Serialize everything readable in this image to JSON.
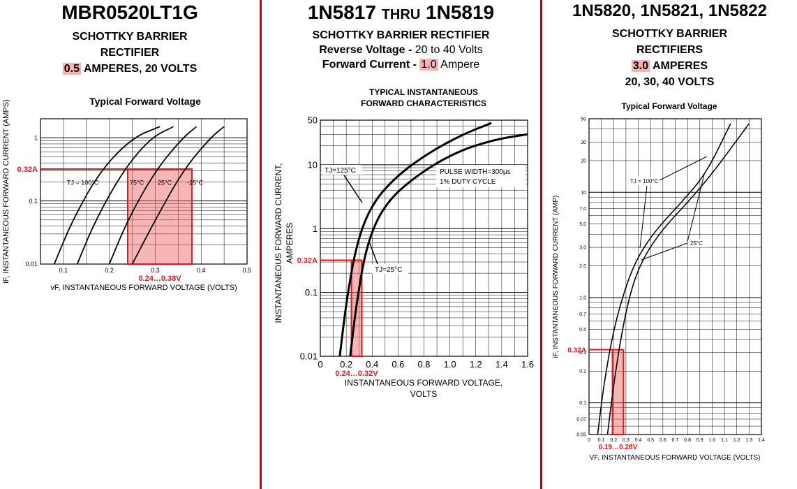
{
  "colors": {
    "divider": "#8b1a1a",
    "highlight": "#f6b3b3",
    "red": "#e0161b",
    "fill": "rgba(240,90,90,0.45)"
  },
  "panels": [
    {
      "title": "MBR0520LT1G",
      "lines": [
        "SCHOTTKY BARRIER",
        "RECTIFIER"
      ],
      "amps_hl": "0.5",
      "amps_rest": " AMPERES, 20 VOLTS"
    },
    {
      "title_a": "1N5817",
      "title_b": "THRU",
      "title_c": "1N5819",
      "line1": "SCHOTTKY BARRIER RECTIFIER",
      "rv_label": "Reverse Voltage - ",
      "rv_value": "20 to 40 Volts",
      "fc_label": "Forward Current - ",
      "fc_hl": "1.0",
      "fc_rest": " Ampere"
    },
    {
      "title": "1N5820, 1N5821, 1N5822",
      "lines": [
        "SCHOTTKY BARRIER",
        "RECTIFIERS"
      ],
      "amps_hl": "3.0",
      "amps_rest": " AMPERES",
      "volts": "20, 30, 40 VOLTS"
    }
  ],
  "chart_data": [
    {
      "type": "line",
      "title": "Typical Forward Voltage",
      "xlabel": "vF, INSTANTANEOUS FORWARD VOLTAGE (VOLTS)",
      "ylabel": "iF, INSTANTANEOUS FORWARD CURRENT (AMPS)",
      "xlim": [
        0.05,
        0.5
      ],
      "ylim": [
        0.01,
        2
      ],
      "yscale": "log",
      "xticks": [
        "0.1",
        "0.2",
        "0.3",
        "0.4",
        "0.5"
      ],
      "yticks": [
        "1",
        "0.1",
        "0.01"
      ],
      "series": [
        {
          "name": "TJ = 100°C",
          "x": [
            0.08,
            0.12,
            0.18,
            0.25,
            0.31
          ],
          "y": [
            0.01,
            0.05,
            0.3,
            1.0,
            1.5
          ]
        },
        {
          "name": "75°C",
          "x": [
            0.13,
            0.17,
            0.23,
            0.29,
            0.34
          ],
          "y": [
            0.01,
            0.05,
            0.3,
            1.0,
            1.5
          ]
        },
        {
          "name": "25°C",
          "x": [
            0.2,
            0.24,
            0.3,
            0.36,
            0.39
          ],
          "y": [
            0.01,
            0.05,
            0.3,
            1.0,
            1.5
          ]
        },
        {
          "name": "-25°C",
          "x": [
            0.25,
            0.3,
            0.36,
            0.42,
            0.45
          ],
          "y": [
            0.01,
            0.05,
            0.3,
            1.0,
            1.5
          ]
        }
      ],
      "annotation": {
        "current": 0.32,
        "current_label": "0.32A",
        "v_min": 0.24,
        "v_max": 0.38,
        "range_label": "0.24…0.38V"
      }
    },
    {
      "type": "line",
      "title": "TYPICAL INSTANTANEOUS",
      "title2": "FORWARD CHARACTERISTICS",
      "xlabel": "INSTANTANEOUS FORWARD VOLTAGE,",
      "xlabel2": "VOLTS",
      "ylabel": "INSTANTANEOUS FORWARD CURRENT,",
      "ylabel2": "AMPERES",
      "xlim": [
        0,
        1.6
      ],
      "ylim": [
        0.01,
        50
      ],
      "yscale": "log",
      "xticks": [
        "0",
        "0.2",
        "0.4",
        "0.6",
        "0.8",
        "1.0",
        "1.2",
        "1.4",
        "1.6"
      ],
      "yticks": [
        "50",
        "10",
        "1",
        "0.1",
        "0.01"
      ],
      "series": [
        {
          "name": "TJ=125°C",
          "x": [
            0.15,
            0.2,
            0.28,
            0.4,
            0.6,
            0.85,
            1.1,
            1.32
          ],
          "y": [
            0.01,
            0.07,
            0.6,
            2.5,
            7,
            16,
            30,
            45
          ]
        },
        {
          "name": "TJ=25°C",
          "x": [
            0.23,
            0.28,
            0.36,
            0.5,
            0.75,
            1.05,
            1.35,
            1.6
          ],
          "y": [
            0.01,
            0.07,
            0.6,
            2.5,
            7,
            16,
            25,
            30
          ]
        }
      ],
      "note": "PULSE WIDTH=300µs",
      "note2": "1% DUTY CYCLE",
      "annotation": {
        "current": 0.32,
        "current_label": "0.32A",
        "v_min": 0.24,
        "v_max": 0.32,
        "range_label": "0.24…0.32V"
      }
    },
    {
      "type": "line",
      "title": "Typical Forward Voltage",
      "xlabel": "VF, INSTANTANEOUS FORWARD VOLTAGE (VOLTS)",
      "ylabel": "iF, INSTANTANEOUS FORWARD CURRENT (AMP)",
      "xlim": [
        0,
        1.4
      ],
      "ylim": [
        0.05,
        50
      ],
      "yscale": "log",
      "xticks": [
        "0",
        "0.1",
        "0.2",
        "0.3",
        "0.4",
        "0.5",
        "0.6",
        "0.7",
        "0.8",
        "0.9",
        "1.0",
        "1.1",
        "1.2",
        "1.3",
        "1.4"
      ],
      "yticks": [
        "50",
        "30",
        "20",
        "10",
        "7.0",
        "5.0",
        "3.0",
        "2.0",
        "1.0",
        "0.7",
        "0.5",
        "0.3",
        "0.2",
        "0.1",
        "0.07",
        "0.05"
      ],
      "series": [
        {
          "name": "TJ = 100°C",
          "x": [
            0.07,
            0.12,
            0.2,
            0.3,
            0.4,
            0.55,
            0.75,
            0.95,
            1.15
          ],
          "y": [
            0.05,
            0.15,
            0.5,
            1.3,
            2.5,
            4.5,
            8,
            15,
            45
          ]
        },
        {
          "name": "25°C",
          "x": [
            0.15,
            0.2,
            0.27,
            0.35,
            0.45,
            0.6,
            0.8,
            1.0,
            1.3
          ],
          "y": [
            0.05,
            0.15,
            0.5,
            1.3,
            2.5,
            4.5,
            8,
            15,
            45
          ]
        }
      ],
      "annotation": {
        "current": 0.32,
        "current_label": "0.32A",
        "v_min": 0.19,
        "v_max": 0.28,
        "range_label": "0.19…0.28V"
      }
    }
  ]
}
